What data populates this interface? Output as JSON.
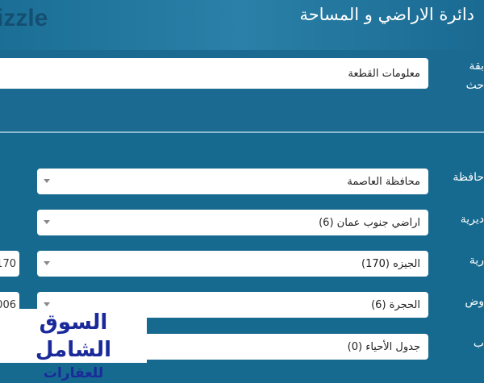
{
  "header": {
    "title": "دائرة الاراضي و المساحة",
    "watermark": "izzle"
  },
  "search_type": {
    "label_line1": "بقة",
    "label_line2": "حث",
    "value": "معلومات القطعة"
  },
  "fields": [
    {
      "label": "حافظة",
      "value": "محافظة العاصمة"
    },
    {
      "label": "ديرية",
      "value": "اراضي جنوب عمان (6)"
    },
    {
      "label": "رية",
      "value": "الجيزه (170)",
      "side_value": "170"
    },
    {
      "label": "وض",
      "value": "الحجرة (6)",
      "side_value": "006"
    },
    {
      "label": "ب",
      "value": "جدول الأحياء (0)"
    }
  ],
  "logo": {
    "line1": "السوق الشامل",
    "line2": "للعقارات"
  },
  "colors": {
    "background": "#16698f",
    "logo_text": "#1a2a9a"
  }
}
